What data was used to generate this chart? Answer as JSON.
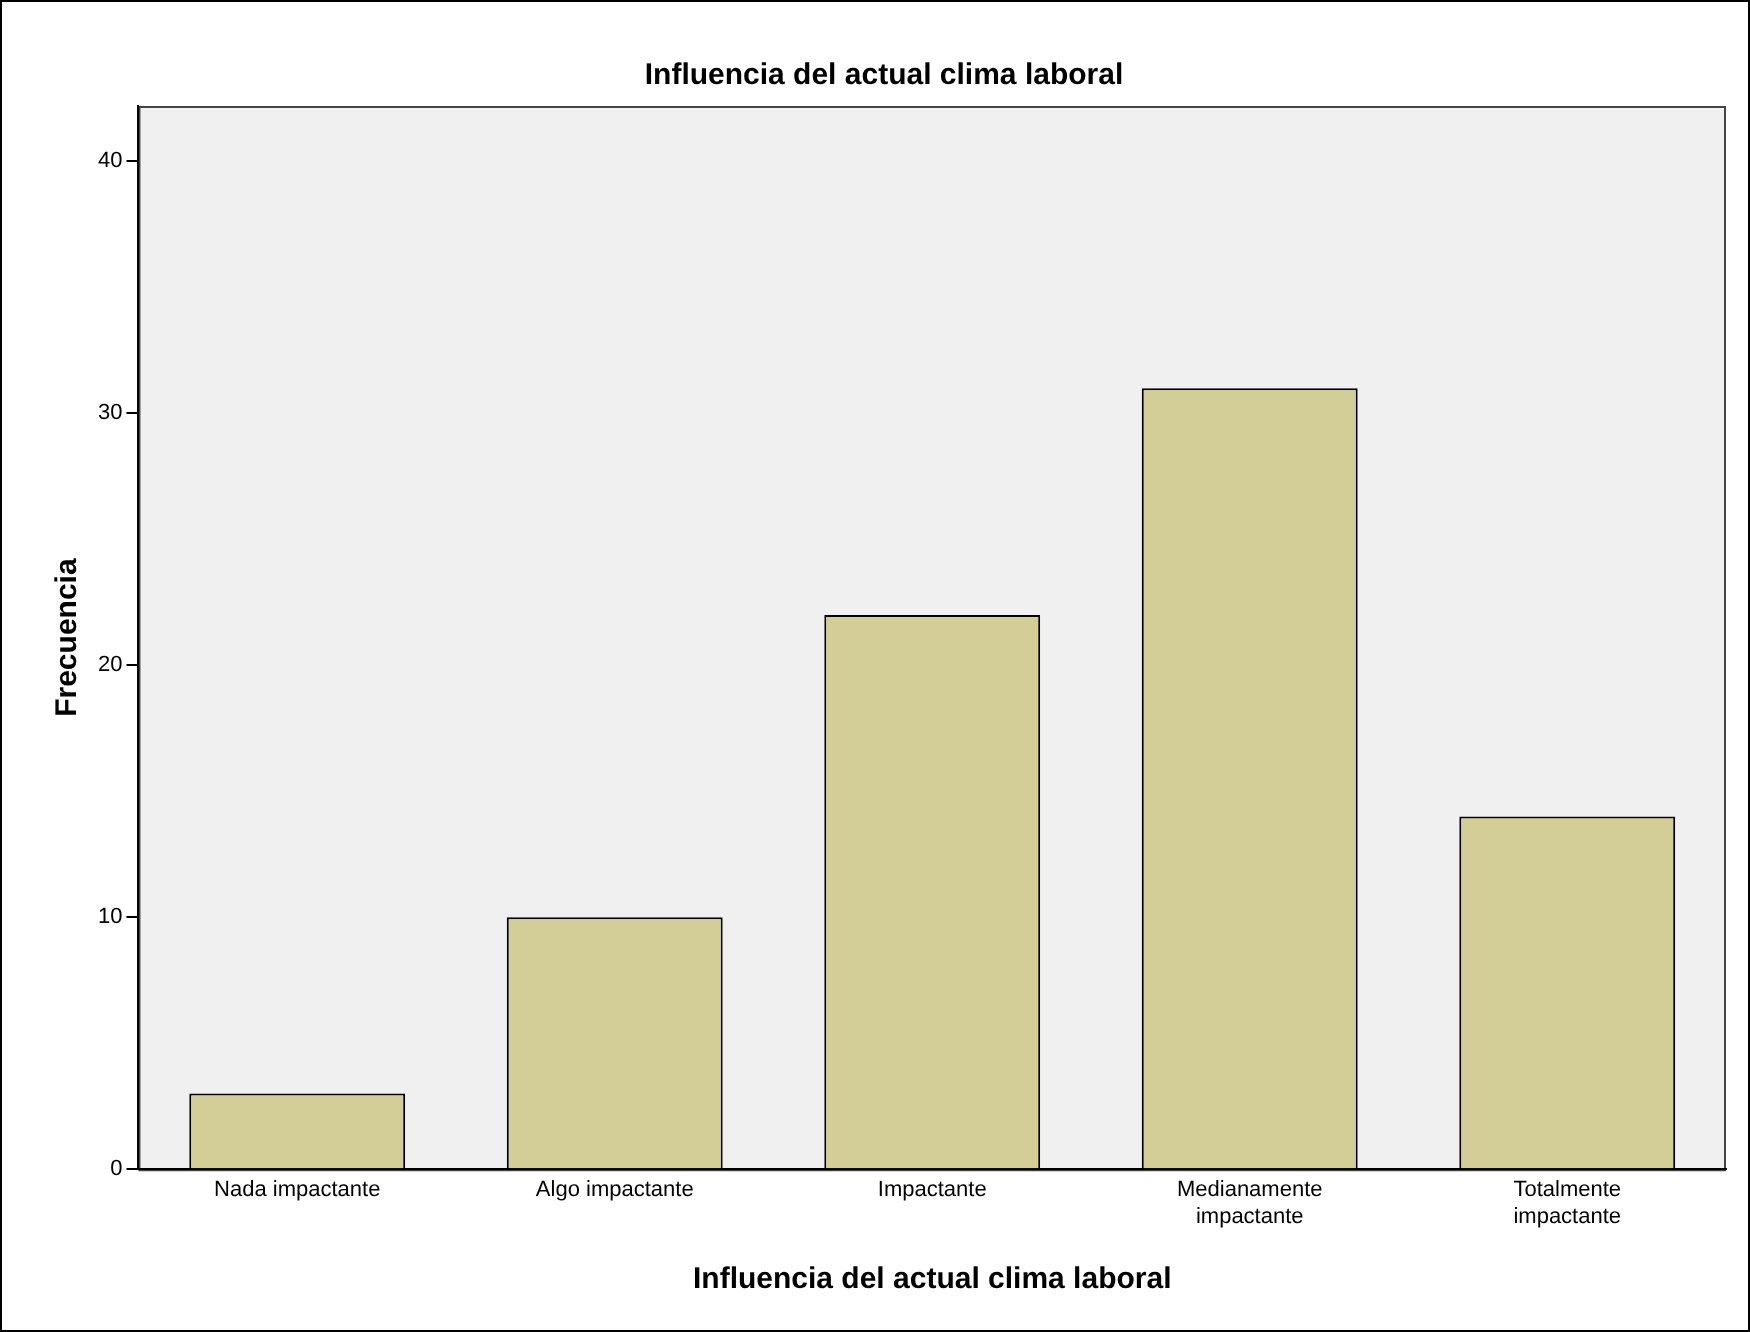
{
  "chart_data": {
    "type": "bar",
    "title": "Influencia del actual clima laboral",
    "xlabel": "Influencia del actual clima laboral",
    "ylabel": "Frecuencia",
    "categories": [
      "Nada impactante",
      "Algo impactante",
      "Impactante",
      "Medianamente impactante",
      "Totalmente impactante"
    ],
    "values": [
      3,
      10,
      22,
      31,
      14
    ],
    "color": "#d3ce97",
    "ylim": [
      0,
      42.2
    ],
    "yticks": [
      0,
      10,
      20,
      30,
      40
    ],
    "grid": false,
    "legend": false
  }
}
